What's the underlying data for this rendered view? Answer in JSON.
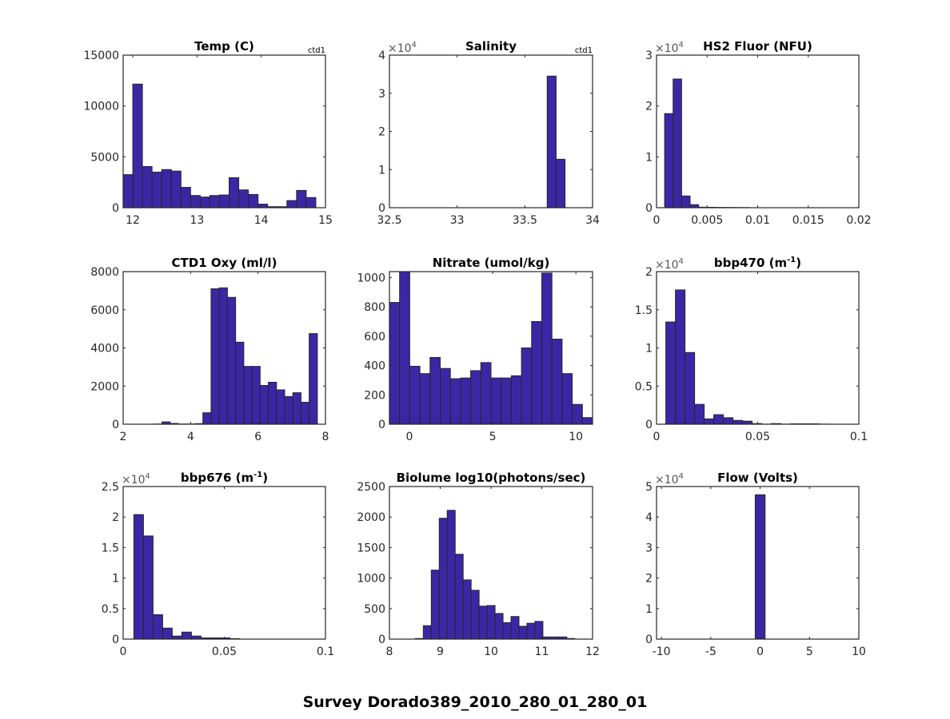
{
  "figure_title": "Survey Dorado389_2010_280_01_280_01",
  "colors": {
    "bar_fill": "#3b27a5",
    "bar_edge": "#262626",
    "axis": "#262626",
    "text": "#262626"
  },
  "chart_data": [
    {
      "type": "bar",
      "title": "Temp (C)",
      "corner_label": "ctd1",
      "multiplier": "",
      "xlim": [
        11.85,
        15
      ],
      "ylim": [
        0,
        15000
      ],
      "xticks": [
        12,
        13,
        14,
        15
      ],
      "xtick_labels": [
        "12",
        "13",
        "14",
        "15"
      ],
      "yticks": [
        0,
        5000,
        10000,
        15000
      ],
      "ytick_labels": [
        "0",
        "5000",
        "10000",
        "15000"
      ],
      "bin_start": 11.85,
      "bin_width": 0.15,
      "values": [
        3250,
        12150,
        4050,
        3500,
        3750,
        3600,
        2000,
        1200,
        1050,
        1200,
        1250,
        2950,
        1750,
        1300,
        350,
        100,
        100,
        700,
        1700,
        1000
      ]
    },
    {
      "type": "bar",
      "title": "Salinity",
      "corner_label": "ctd1",
      "multiplier": "×10",
      "multiplier_exp": "4",
      "xlim": [
        32.5,
        34
      ],
      "ylim": [
        0,
        40000
      ],
      "xticks": [
        32.5,
        33,
        33.5,
        34
      ],
      "xtick_labels": [
        "32.5",
        "33",
        "33.5",
        "34"
      ],
      "yticks": [
        0,
        10000,
        20000,
        30000,
        40000
      ],
      "ytick_labels": [
        "0",
        "1",
        "2",
        "3",
        "4"
      ],
      "bin_start": 33.665,
      "bin_width": 0.066,
      "values": [
        34500,
        12700
      ]
    },
    {
      "type": "bar",
      "title": "HS2 Fluor (NFU)",
      "corner_label": "",
      "multiplier": "×10",
      "multiplier_exp": "4",
      "xlim": [
        0,
        0.02
      ],
      "ylim": [
        0,
        30000
      ],
      "xticks": [
        0,
        0.005,
        0.01,
        0.015,
        0.02
      ],
      "xtick_labels": [
        "0",
        "0.005",
        "0.01",
        "0.015",
        "0.02"
      ],
      "yticks": [
        0,
        10000,
        20000,
        30000
      ],
      "ytick_labels": [
        "0",
        "1",
        "2",
        "3"
      ],
      "bin_start": 0.0008,
      "bin_width": 0.00084,
      "values": [
        18500,
        25300,
        2300,
        600,
        100,
        80,
        60,
        50,
        40,
        30
      ]
    },
    {
      "type": "bar",
      "title": "CTD1 Oxy (ml/l)",
      "corner_label": "",
      "multiplier": "",
      "xlim": [
        2,
        8
      ],
      "ylim": [
        0,
        8000
      ],
      "xticks": [
        2,
        4,
        6,
        8
      ],
      "xtick_labels": [
        "2",
        "4",
        "6",
        "8"
      ],
      "yticks": [
        0,
        2000,
        4000,
        6000,
        8000
      ],
      "ytick_labels": [
        "0",
        "2000",
        "4000",
        "6000",
        "8000"
      ],
      "bin_start": 2.91,
      "bin_width": 0.2425,
      "values": [
        10,
        120,
        40,
        10,
        10,
        30,
        600,
        7100,
        7150,
        6650,
        4300,
        3030,
        3030,
        2030,
        2200,
        1800,
        1450,
        1650,
        1150,
        4750
      ]
    },
    {
      "type": "bar",
      "title": "Nitrate (umol/kg)",
      "corner_label": "",
      "multiplier": "",
      "xlim": [
        -1.2,
        11
      ],
      "ylim": [
        0,
        1040
      ],
      "xticks": [
        0,
        5,
        10
      ],
      "xtick_labels": [
        "0",
        "5",
        "10"
      ],
      "yticks": [
        0,
        200,
        400,
        600,
        800,
        1000
      ],
      "ytick_labels": [
        "0",
        "200",
        "400",
        "600",
        "800",
        "1000"
      ],
      "bin_start": -1.2,
      "bin_width": 0.61,
      "values": [
        830,
        1045,
        395,
        345,
        455,
        380,
        310,
        315,
        365,
        420,
        315,
        315,
        330,
        520,
        700,
        1030,
        580,
        345,
        135,
        45
      ]
    },
    {
      "type": "bar",
      "title": "bbp470 (m",
      "title_sup": "-1",
      "title_end": ")",
      "corner_label": "",
      "multiplier": "×10",
      "multiplier_exp": "4",
      "xlim": [
        0,
        0.1
      ],
      "ylim": [
        0,
        20000
      ],
      "xticks": [
        0,
        0.05,
        0.1
      ],
      "xtick_labels": [
        "0",
        "0.05",
        "0.1"
      ],
      "yticks": [
        0,
        5000,
        10000,
        15000,
        20000
      ],
      "ytick_labels": [
        "0",
        "0.5",
        "1",
        "1.5",
        "2"
      ],
      "bin_start": 0.0046,
      "bin_width": 0.00474,
      "values": [
        13400,
        17600,
        9400,
        2600,
        700,
        1250,
        850,
        500,
        400,
        80,
        10,
        80,
        10,
        50,
        50,
        50,
        10
      ]
    },
    {
      "type": "bar",
      "title": "bbp676 (m",
      "title_sup": "-1",
      "title_end": ")",
      "corner_label": "",
      "multiplier": "×10",
      "multiplier_exp": "4",
      "xlim": [
        0,
        0.1
      ],
      "ylim": [
        0,
        25000
      ],
      "xticks": [
        0,
        0.05,
        0.1
      ],
      "xtick_labels": [
        "0",
        "0.05",
        "0.1"
      ],
      "yticks": [
        0,
        5000,
        10000,
        15000,
        20000,
        25000
      ],
      "ytick_labels": [
        "0",
        "0.5",
        "1",
        "1.5",
        "2",
        "2.5"
      ],
      "bin_start": 0.0053,
      "bin_width": 0.00474,
      "values": [
        20400,
        16900,
        4000,
        1800,
        500,
        1150,
        500,
        200,
        200,
        200,
        80
      ]
    },
    {
      "type": "bar",
      "title": "Biolume log10(photons/sec)",
      "corner_label": "",
      "multiplier": "",
      "xlim": [
        8,
        12
      ],
      "ylim": [
        0,
        2500
      ],
      "xticks": [
        8,
        9,
        10,
        11,
        12
      ],
      "xtick_labels": [
        "8",
        "9",
        "10",
        "11",
        "12"
      ],
      "yticks": [
        0,
        500,
        1000,
        1500,
        2000,
        2500
      ],
      "ytick_labels": [
        "0",
        "500",
        "1000",
        "1500",
        "2000",
        "2500"
      ],
      "bin_start": 8.51,
      "bin_width": 0.157,
      "values": [
        10,
        220,
        1130,
        1980,
        2110,
        1390,
        970,
        800,
        540,
        550,
        420,
        270,
        370,
        210,
        260,
        290,
        35,
        35,
        35,
        10
      ]
    },
    {
      "type": "bar",
      "title": "Flow (Volts)",
      "corner_label": "",
      "multiplier": "×10",
      "multiplier_exp": "4",
      "xlim": [
        -10.5,
        10
      ],
      "ylim": [
        0,
        50000
      ],
      "xticks": [
        -10,
        -5,
        0,
        5,
        10
      ],
      "xtick_labels": [
        "-10",
        "-5",
        "0",
        "5",
        "10"
      ],
      "yticks": [
        0,
        10000,
        20000,
        30000,
        40000,
        50000
      ],
      "ytick_labels": [
        "0",
        "1",
        "2",
        "3",
        "4",
        "5"
      ],
      "bin_start": -0.5,
      "bin_width": 1.0,
      "values": [
        47300
      ]
    }
  ]
}
